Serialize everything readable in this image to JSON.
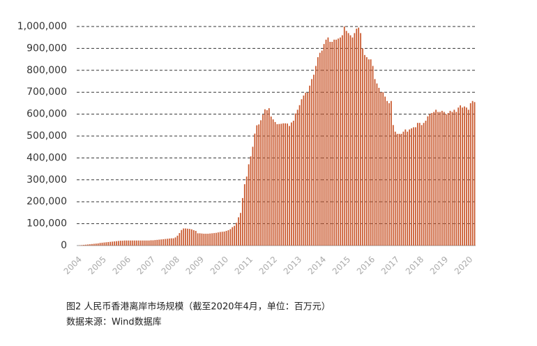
{
  "chart_data": {
    "type": "bar",
    "caption": "图2 人民币香港离岸市场规模（截至2020年4月，单位：百万元）",
    "source": "数据来源：Wind数据库",
    "color": "#c9582d",
    "grid": true,
    "ylim": [
      0,
      1000000
    ],
    "yticks": [
      0,
      {
        "value": 100000,
        "label": "100,000"
      },
      {
        "value": 200000,
        "label": "200,000"
      },
      {
        "value": 300000,
        "label": "300,000"
      },
      {
        "value": 400000,
        "label": "400,000"
      },
      {
        "value": 500000,
        "label": "500,000"
      },
      {
        "value": 600000,
        "label": "600,000"
      },
      {
        "value": 700000,
        "label": "700,000"
      },
      {
        "value": 800000,
        "label": "800,000"
      },
      {
        "value": 900000,
        "label": "900,000"
      },
      {
        "value": 1000000,
        "label": "1,000,000"
      }
    ],
    "categories": [
      "2004",
      null,
      null,
      null,
      null,
      null,
      null,
      null,
      null,
      null,
      null,
      null,
      "2005",
      null,
      null,
      null,
      null,
      null,
      null,
      null,
      null,
      null,
      null,
      null,
      "2006",
      null,
      null,
      null,
      null,
      null,
      null,
      null,
      null,
      null,
      null,
      null,
      "2007",
      null,
      null,
      null,
      null,
      null,
      null,
      null,
      null,
      null,
      null,
      null,
      "2008",
      null,
      null,
      null,
      null,
      null,
      null,
      null,
      null,
      null,
      null,
      null,
      "2009",
      null,
      null,
      null,
      null,
      null,
      null,
      null,
      null,
      null,
      null,
      null,
      "2010",
      null,
      null,
      null,
      null,
      null,
      null,
      null,
      null,
      null,
      null,
      null,
      "2011",
      null,
      null,
      null,
      null,
      null,
      null,
      null,
      null,
      null,
      null,
      null,
      "2012",
      null,
      null,
      null,
      null,
      null,
      null,
      null,
      null,
      null,
      null,
      null,
      "2013",
      null,
      null,
      null,
      null,
      null,
      null,
      null,
      null,
      null,
      null,
      null,
      "2014",
      null,
      null,
      null,
      null,
      null,
      null,
      null,
      null,
      null,
      null,
      null,
      "2015",
      null,
      null,
      null,
      null,
      null,
      null,
      null,
      null,
      null,
      null,
      null,
      "2016",
      null,
      null,
      null,
      null,
      null,
      null,
      null,
      null,
      null,
      null,
      null,
      "2017",
      null,
      null,
      null,
      null,
      null,
      null,
      null,
      null,
      null,
      null,
      null,
      "2018",
      null,
      null,
      null,
      null,
      null,
      null,
      null,
      null,
      null,
      null,
      null,
      "2019",
      null,
      null,
      null,
      null,
      null,
      null,
      null,
      null,
      null,
      null,
      null,
      "2020",
      null,
      null,
      null
    ],
    "values": [
      0,
      900,
      2000,
      3000,
      4000,
      5000,
      6000,
      7000,
      8000,
      9000,
      10000,
      12000,
      13000,
      14000,
      15000,
      16000,
      17000,
      18000,
      19000,
      20000,
      21000,
      22000,
      22000,
      23000,
      23000,
      23000,
      23000,
      23000,
      23000,
      23000,
      23000,
      23000,
      23000,
      23000,
      23000,
      23000,
      24000,
      24000,
      25000,
      26000,
      27000,
      28000,
      29000,
      30000,
      31000,
      32000,
      33000,
      33000,
      37000,
      45000,
      57000,
      71000,
      78000,
      78000,
      77000,
      76000,
      74000,
      70000,
      67000,
      56000,
      56000,
      55000,
      54000,
      54000,
      54000,
      55000,
      56000,
      57000,
      58000,
      60000,
      62000,
      63000,
      64000,
      67000,
      70000,
      75000,
      84000,
      90000,
      104000,
      129000,
      149000,
      217000,
      280000,
      315000,
      371000,
      407000,
      451000,
      511000,
      549000,
      553000,
      572000,
      598000,
      622000,
      618000,
      627000,
      589000,
      576000,
      564000,
      554000,
      555000,
      556000,
      558000,
      558000,
      557000,
      546000,
      562000,
      570000,
      603000,
      620000,
      641000,
      668000,
      685000,
      698000,
      698000,
      730000,
      760000,
      780000,
      820000,
      860000,
      880000,
      890000,
      920000,
      940000,
      950000,
      930000,
      930000,
      940000,
      940000,
      945000,
      950000,
      960000,
      1000000,
      980000,
      970000,
      960000,
      950000,
      970000,
      990000,
      995000,
      970000,
      900000,
      870000,
      860000,
      850000,
      850000,
      820000,
      760000,
      740000,
      720000,
      700000,
      700000,
      680000,
      660000,
      650000,
      660000,
      550000,
      520000,
      510000,
      510000,
      510000,
      520000,
      530000,
      520000,
      530000,
      535000,
      540000,
      540000,
      560000,
      560000,
      550000,
      560000,
      570000,
      590000,
      600000,
      605000,
      610000,
      620000,
      610000,
      610000,
      615000,
      610000,
      600000,
      605000,
      615000,
      610000,
      620000,
      610000,
      630000,
      640000,
      630000,
      635000,
      630000,
      620000,
      650000,
      660000,
      655000
    ]
  }
}
